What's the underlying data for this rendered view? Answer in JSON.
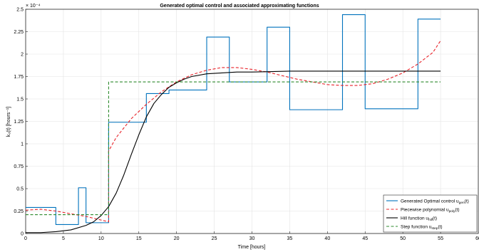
{
  "chart_data": {
    "type": "line",
    "title": "Generated optimal control and associated approximating functions",
    "xlabel": "Time [hours]",
    "ylabel": "k₃(t) [hours⁻¹]",
    "y_multiplier": "× 10⁻⁴",
    "xlim": [
      0,
      60
    ],
    "ylim": [
      0,
      2.5
    ],
    "grid": true,
    "legend_position": "bottom-right",
    "x_ticks": [
      "0",
      "5",
      "10",
      "15",
      "20",
      "25",
      "30",
      "35",
      "40",
      "45",
      "50",
      "55",
      "60"
    ],
    "y_ticks": [
      "0",
      "0.25",
      "0.5",
      "0.75",
      "1",
      "1.25",
      "1.5",
      "1.75",
      "2",
      "2.25",
      "2.5"
    ],
    "series": [
      {
        "name": "Generated Optimal control u_gen(t)",
        "color": "#0072BD",
        "style": "solid-step",
        "x": [
          0,
          4,
          4,
          7,
          7,
          8,
          8,
          11,
          11,
          16,
          16,
          19,
          19,
          24,
          24,
          27,
          27,
          32,
          32,
          35,
          35,
          42,
          42,
          45,
          45,
          52,
          52,
          55
        ],
        "y": [
          0.29,
          0.29,
          0.1,
          0.1,
          0.51,
          0.51,
          0.12,
          0.12,
          1.24,
          1.24,
          1.56,
          1.56,
          1.6,
          1.6,
          2.19,
          2.19,
          1.69,
          1.69,
          2.3,
          2.3,
          1.38,
          1.38,
          2.44,
          2.44,
          1.39,
          1.39,
          2.39,
          2.39
        ]
      },
      {
        "name": "Piecewise polynomial u_poly(t)",
        "color": "#E8232A",
        "style": "dashed",
        "x": [
          0,
          2,
          4,
          6,
          8,
          10,
          11,
          11,
          12,
          14,
          16,
          18,
          20,
          22,
          24,
          26,
          28,
          30,
          32,
          34,
          36,
          38,
          40,
          42,
          44,
          46,
          48,
          50,
          52,
          54,
          55
        ],
        "y": [
          0.26,
          0.27,
          0.25,
          0.22,
          0.19,
          0.15,
          0.13,
          0.92,
          1.07,
          1.28,
          1.44,
          1.58,
          1.69,
          1.77,
          1.82,
          1.85,
          1.85,
          1.83,
          1.8,
          1.76,
          1.72,
          1.69,
          1.66,
          1.65,
          1.65,
          1.67,
          1.72,
          1.79,
          1.89,
          2.02,
          2.15
        ]
      },
      {
        "name": "Hill function u_hill(t)",
        "color": "#000000",
        "style": "solid",
        "x": [
          0,
          2,
          4,
          6,
          8,
          9,
          10,
          11,
          12,
          13,
          14,
          15,
          16,
          17,
          18,
          19,
          20,
          21,
          22,
          24,
          26,
          28,
          30,
          35,
          40,
          45,
          50,
          55
        ],
        "y": [
          0.01,
          0.01,
          0.02,
          0.04,
          0.09,
          0.13,
          0.2,
          0.3,
          0.45,
          0.65,
          0.88,
          1.1,
          1.3,
          1.45,
          1.55,
          1.63,
          1.68,
          1.72,
          1.75,
          1.78,
          1.79,
          1.8,
          1.8,
          1.81,
          1.81,
          1.81,
          1.81,
          1.81
        ]
      },
      {
        "name": "Step function u_step(t)",
        "color": "#2E8B2E",
        "style": "dashed-step",
        "x": [
          0,
          11,
          11,
          55
        ],
        "y": [
          0.21,
          0.21,
          1.69,
          1.69
        ]
      }
    ],
    "legend": [
      {
        "main": "Generated Optimal control u",
        "sub": "gen",
        "tail": "(t)"
      },
      {
        "main": "Piecewise polynomial u",
        "sub": "poly",
        "tail": "(t)"
      },
      {
        "main": "Hill function u",
        "sub": "hill",
        "tail": "(t)"
      },
      {
        "main": "Step function u",
        "sub": "step",
        "tail": "(t)"
      }
    ]
  }
}
